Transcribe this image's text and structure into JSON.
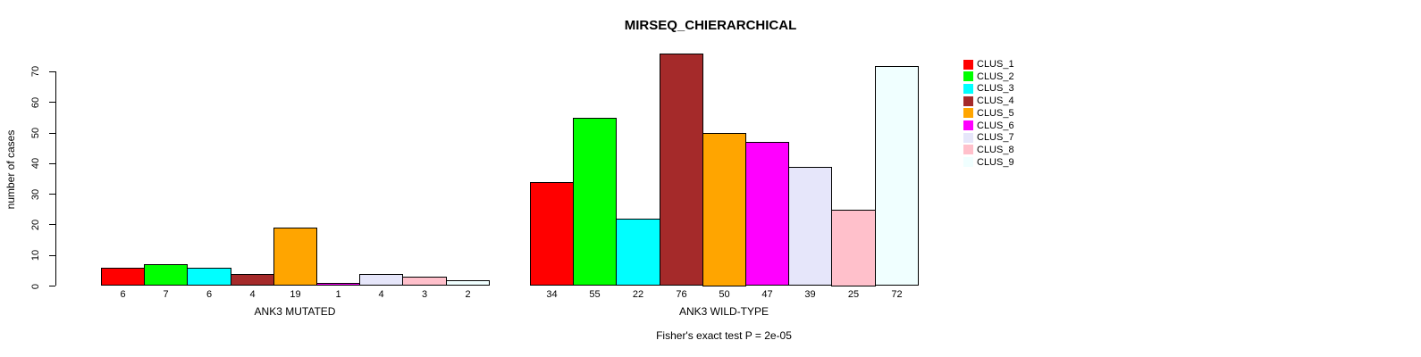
{
  "chart_data": {
    "type": "bar",
    "title": "MIRSEQ_CHIERARCHICAL",
    "ylabel": "number of cases",
    "ylim": [
      0,
      70
    ],
    "yticks": [
      0,
      10,
      20,
      30,
      40,
      50,
      60,
      70
    ],
    "grid": false,
    "legend_position": "right",
    "clusters": [
      "CLUS_1",
      "CLUS_2",
      "CLUS_3",
      "CLUS_4",
      "CLUS_5",
      "CLUS_6",
      "CLUS_7",
      "CLUS_8",
      "CLUS_9"
    ],
    "colors": [
      "#FF0000",
      "#00FF00",
      "#00FFFF",
      "#A52A2A",
      "#FFA500",
      "#FF00FF",
      "#E6E6FA",
      "#FFC0CB",
      "#F0FFFF"
    ],
    "bar_border_color": "#000000",
    "groups": [
      {
        "label": "ANK3 MUTATED",
        "values": [
          6,
          7,
          6,
          4,
          19,
          1,
          4,
          3,
          2
        ]
      },
      {
        "label": "ANK3 WILD-TYPE",
        "values": [
          34,
          55,
          22,
          76,
          50,
          47,
          39,
          25,
          72
        ]
      }
    ],
    "annotation": "Fisher's exact test P = 2e-05"
  }
}
